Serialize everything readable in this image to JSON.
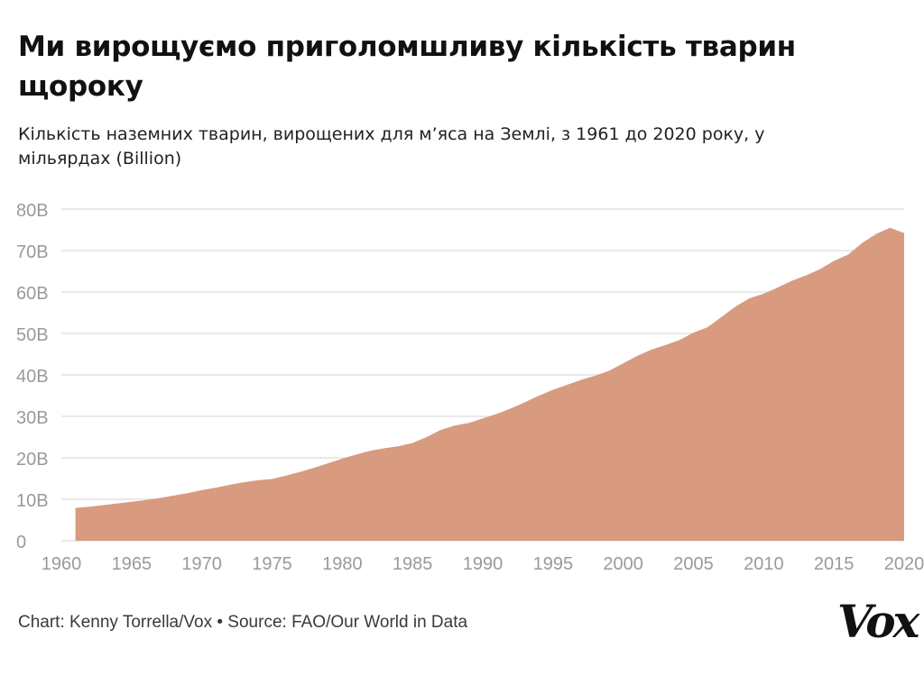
{
  "title": "Ми вирощуємо приголомшливу кількість тварин щороку",
  "subtitle": "Кількість наземних тварин, вирощених для м’яса на Землі, з 1961 до 2020 року, у мільярдах (Billion)",
  "footer": "Chart: Kenny Torrella/Vox • Source: FAO/Our World in Data",
  "logo": "Vox",
  "colors": {
    "area": "#d89b80",
    "grid": "#e4e4e4",
    "tick": "#9a9a9a"
  },
  "chart_data": {
    "type": "area",
    "x": [
      1961,
      1962,
      1963,
      1964,
      1965,
      1966,
      1967,
      1968,
      1969,
      1970,
      1971,
      1972,
      1973,
      1974,
      1975,
      1976,
      1977,
      1978,
      1979,
      1980,
      1981,
      1982,
      1983,
      1984,
      1985,
      1986,
      1987,
      1988,
      1989,
      1990,
      1991,
      1992,
      1993,
      1994,
      1995,
      1996,
      1997,
      1998,
      1999,
      2000,
      2001,
      2002,
      2003,
      2004,
      2005,
      2006,
      2007,
      2008,
      2009,
      2010,
      2011,
      2012,
      2013,
      2014,
      2015,
      2016,
      2017,
      2018,
      2019,
      2020
    ],
    "series": [
      {
        "values": [
          7.9,
          8.2,
          8.6,
          9.0,
          9.4,
          9.8,
          10.3,
          10.9,
          11.5,
          12.2,
          12.8,
          13.5,
          14.1,
          14.6,
          14.9,
          15.7,
          16.6,
          17.6,
          18.7,
          19.8,
          20.8,
          21.7,
          22.3,
          22.8,
          23.6,
          25.0,
          26.7,
          27.8,
          28.4,
          29.5,
          30.6,
          31.9,
          33.4,
          35.0,
          36.4,
          37.6,
          38.8,
          39.8,
          41.0,
          42.8,
          44.6,
          46.1,
          47.2,
          48.4,
          50.2,
          51.5,
          54.0,
          56.5,
          58.5,
          59.6,
          61.1,
          62.7,
          64.0,
          65.5,
          67.5,
          69.0,
          71.8,
          74.0,
          75.5,
          74.2
        ]
      }
    ],
    "x_ticks": [
      1960,
      1965,
      1970,
      1975,
      1980,
      1985,
      1990,
      1995,
      2000,
      2005,
      2010,
      2015,
      2020
    ],
    "y_ticks": [
      0,
      10,
      20,
      30,
      40,
      50,
      60,
      70,
      80
    ],
    "y_tick_labels": [
      "0",
      "10B",
      "20B",
      "30B",
      "40B",
      "50B",
      "60B",
      "70B",
      "80B"
    ],
    "xlim": [
      1960,
      2020
    ],
    "ylim": [
      0,
      80
    ],
    "grid": true
  }
}
